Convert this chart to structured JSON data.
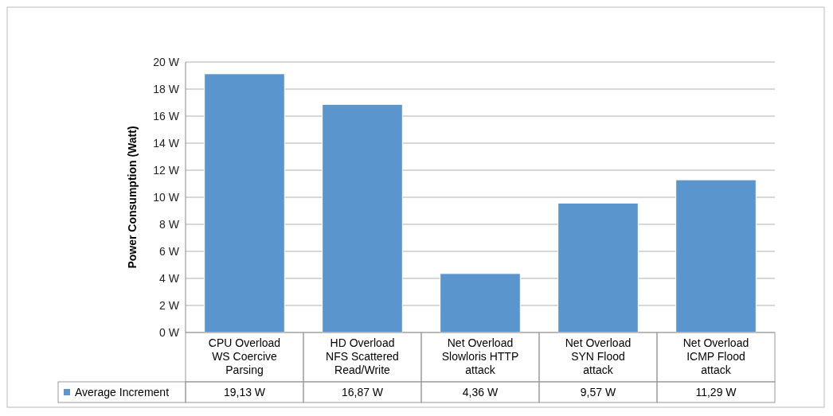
{
  "chart_data": {
    "type": "bar",
    "ylabel": "Power Consumption (Watt)",
    "categories": [
      "CPU Overload WS Coercive Parsing",
      "HD Overload NFS Scattered Read/Write",
      "Net Overload Slowloris HTTP attack",
      "Net Overload SYN Flood attack",
      "Net Overload ICMP Flood attack"
    ],
    "series": [
      {
        "name": "Average Increment",
        "color": "#5b95cd",
        "values": [
          19.13,
          16.87,
          4.36,
          9.57,
          11.29
        ],
        "value_labels": [
          "19,13 W",
          "16,87 W",
          "4,36 W",
          "9,57 W",
          "11,29 W"
        ]
      }
    ],
    "ylim": [
      0,
      20
    ],
    "yticks": [
      {
        "value": 0,
        "label": "0 W"
      },
      {
        "value": 2,
        "label": "2 W"
      },
      {
        "value": 4,
        "label": "4 W"
      },
      {
        "value": 6,
        "label": "6 W"
      },
      {
        "value": 8,
        "label": "8 W"
      },
      {
        "value": 10,
        "label": "10 W"
      },
      {
        "value": 12,
        "label": "12 W"
      },
      {
        "value": 14,
        "label": "14 W"
      },
      {
        "value": 16,
        "label": "16 W"
      },
      {
        "value": 18,
        "label": "18 W"
      },
      {
        "value": 20,
        "label": "20 W"
      }
    ],
    "grid": "y",
    "legend": "bottom"
  }
}
